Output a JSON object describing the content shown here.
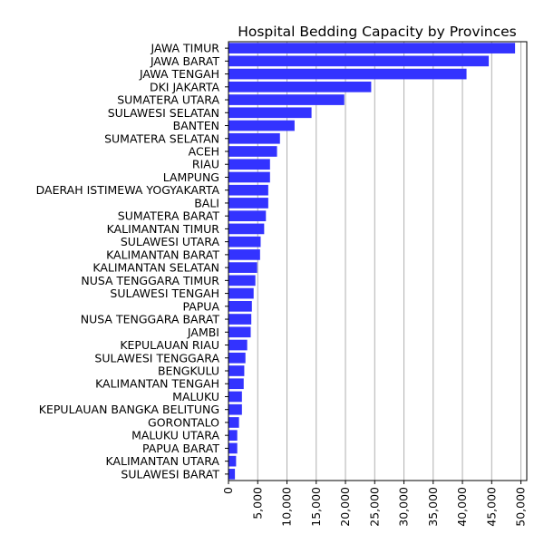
{
  "chart_data": {
    "type": "bar",
    "orientation": "horizontal",
    "title": "Hospital Bedding Capacity by Provinces",
    "xlabel": "",
    "ylabel": "",
    "xlim": [
      0,
      51000
    ],
    "xticks": [
      0,
      5000,
      10000,
      15000,
      20000,
      25000,
      30000,
      35000,
      40000,
      45000,
      50000
    ],
    "xtick_labels": [
      "0",
      "5,000",
      "10,000",
      "15,000",
      "20,000",
      "25,000",
      "30,000",
      "35,000",
      "40,000",
      "45,000",
      "50,000"
    ],
    "grid": "vertical",
    "bar_color": "#3333ff",
    "categories": [
      "JAWA TIMUR",
      "JAWA BARAT",
      "JAWA TENGAH",
      "DKI JAKARTA",
      "SUMATERA UTARA",
      "SULAWESI SELATAN",
      "BANTEN",
      "SUMATERA SELATAN",
      "ACEH",
      "RIAU",
      "LAMPUNG",
      "DAERAH ISTIMEWA YOGYAKARTA",
      "BALI",
      "SUMATERA BARAT",
      "KALIMANTAN TIMUR",
      "SULAWESI UTARA",
      "KALIMANTAN BARAT",
      "KALIMANTAN SELATAN",
      "NUSA TENGGARA TIMUR",
      "SULAWESI TENGAH",
      "PAPUA",
      "NUSA TENGGARA BARAT",
      "JAMBI",
      "KEPULAUAN RIAU",
      "SULAWESI TENGGARA",
      "BENGKULU",
      "KALIMANTAN TENGAH",
      "MALUKU",
      "KEPULAUAN BANGKA BELITUNG",
      "GORONTALO",
      "MALUKU UTARA",
      "PAPUA BARAT",
      "KALIMANTAN UTARA",
      "SULAWESI BARAT"
    ],
    "values": [
      49000,
      44500,
      40700,
      24400,
      19800,
      14200,
      11300,
      8800,
      8300,
      7100,
      7100,
      6800,
      6800,
      6400,
      6100,
      5500,
      5400,
      4900,
      4600,
      4300,
      4000,
      3900,
      3800,
      3200,
      2900,
      2700,
      2600,
      2300,
      2300,
      1800,
      1500,
      1500,
      1300,
      1100
    ]
  }
}
